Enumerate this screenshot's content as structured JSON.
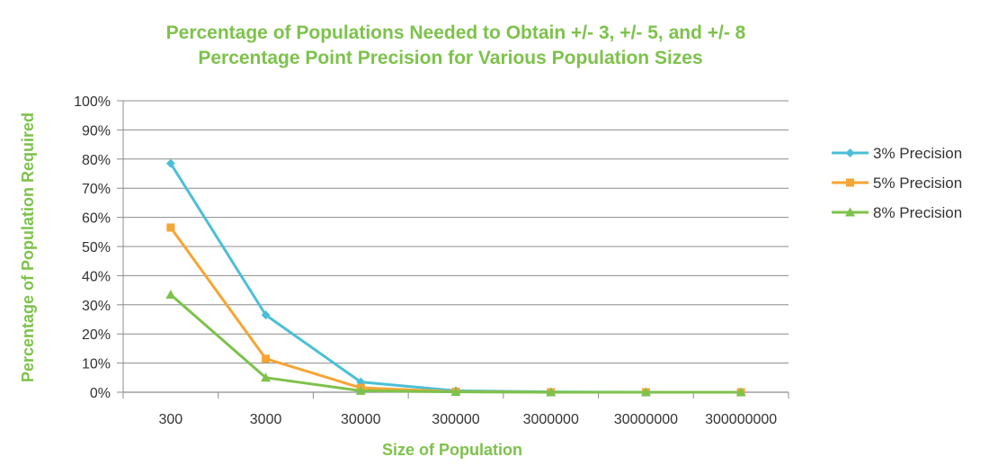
{
  "chart_data": {
    "type": "line",
    "title_lines": [
      "Percentage of Populations Needed to Obtain +/- 3, +/- 5, and +/- 8",
      "Percentage Point Precision for Various Population Sizes"
    ],
    "xlabel": "Size of Population",
    "ylabel": "Percentage of Population Required",
    "categories": [
      "300",
      "3000",
      "30000",
      "300000",
      "3000000",
      "30000000",
      "300000000"
    ],
    "ylim": [
      0,
      100
    ],
    "yticks": [
      "0%",
      "10%",
      "20%",
      "30%",
      "40%",
      "50%",
      "60%",
      "70%",
      "80%",
      "90%",
      "100%"
    ],
    "grid": true,
    "legend_position": "right",
    "series": [
      {
        "name": "3% Precision",
        "color": "#4bbfd8",
        "marker": "diamond",
        "values": [
          78.5,
          26.5,
          3.5,
          0.5,
          0.1,
          0.0,
          0.0
        ]
      },
      {
        "name": "5% Precision",
        "color": "#f5a534",
        "marker": "square",
        "values": [
          56.5,
          11.5,
          1.5,
          0.2,
          0.0,
          0.0,
          0.0
        ]
      },
      {
        "name": "8% Precision",
        "color": "#7dc24b",
        "marker": "triangle",
        "values": [
          33.5,
          5.0,
          0.5,
          0.1,
          0.0,
          0.0,
          0.0
        ]
      }
    ]
  },
  "colors": {
    "title": "#7dc24b",
    "grid": "#8c8c8c",
    "axis": "#8c8c8c"
  }
}
